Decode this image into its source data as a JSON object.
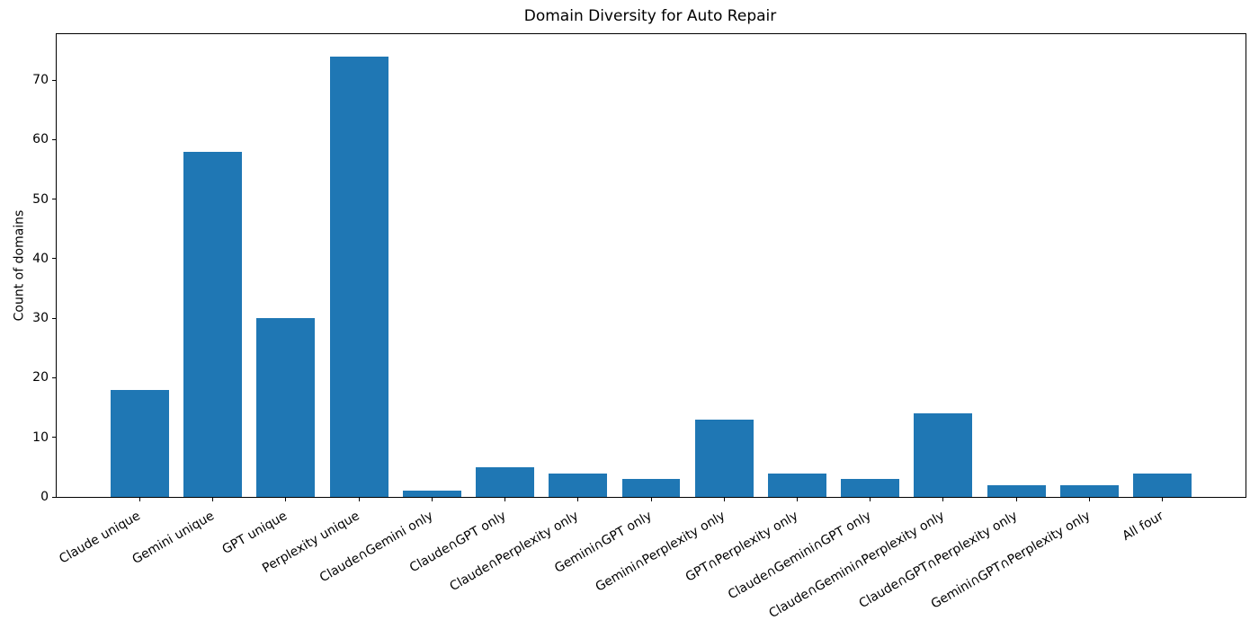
{
  "chart_data": {
    "type": "bar",
    "title": "Domain Diversity for Auto Repair",
    "xlabel": "",
    "ylabel": "Count of domains",
    "categories": [
      "Claude unique",
      "Gemini unique",
      "GPT unique",
      "Perplexity unique",
      "Claude∩Gemini only",
      "Claude∩GPT only",
      "Claude∩Perplexity only",
      "Gemini∩GPT only",
      "Gemini∩Perplexity only",
      "GPT∩Perplexity only",
      "Claude∩Gemini∩GPT only",
      "Claude∩Gemini∩Perplexity only",
      "Claude∩GPT∩Perplexity only",
      "Gemini∩GPT∩Perplexity only",
      "All four"
    ],
    "values": [
      18,
      58,
      30,
      74,
      1,
      5,
      4,
      3,
      13,
      4,
      3,
      14,
      2,
      2,
      4
    ],
    "yticks": [
      0,
      10,
      20,
      30,
      40,
      50,
      60,
      70
    ],
    "ylim": [
      0,
      77.7
    ],
    "bar_color": "#1f77b4",
    "grid": false,
    "legend": null,
    "x_tick_rotation_deg": 30
  }
}
